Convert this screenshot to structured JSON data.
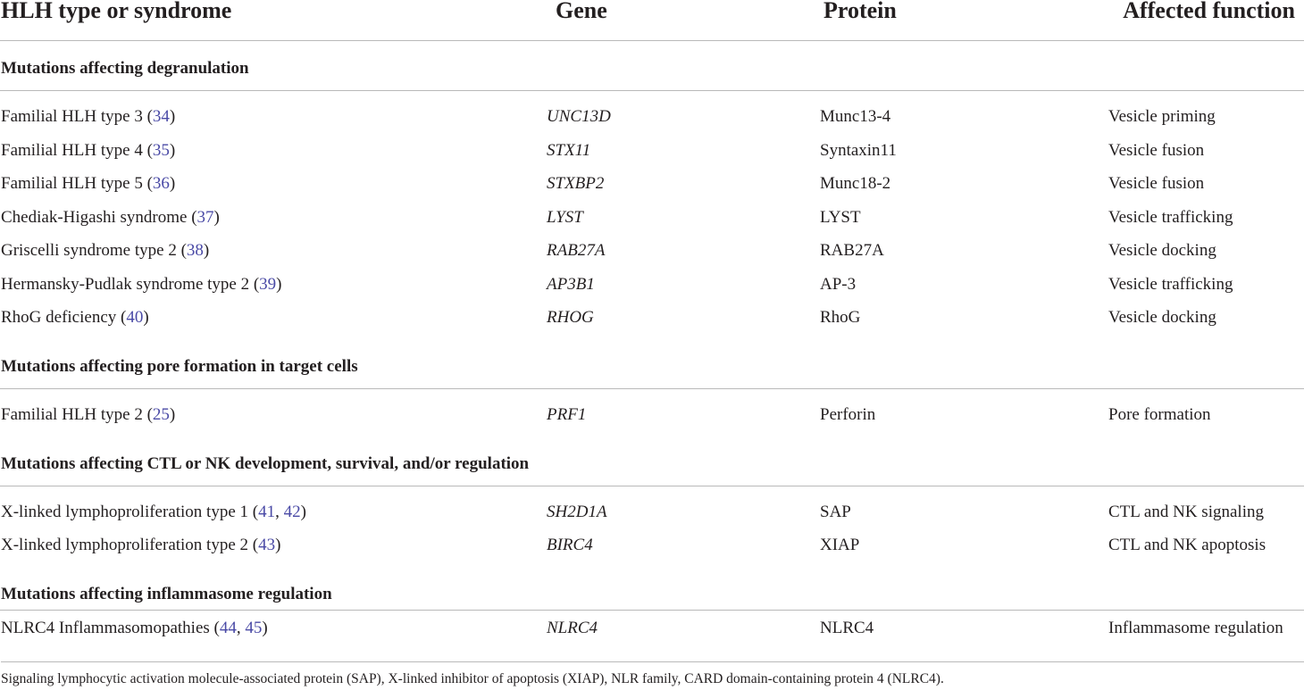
{
  "header": {
    "col1": "HLH type or syndrome",
    "col2": "Gene",
    "col3": "Protein",
    "col4": "Affected function"
  },
  "sections": [
    {
      "title": "Mutations affecting degranulation",
      "rows": [
        {
          "syndrome": "Familial HLH type 3",
          "refs": [
            "34"
          ],
          "gene": "UNC13D",
          "protein": "Munc13-4",
          "function": "Vesicle priming"
        },
        {
          "syndrome": "Familial HLH type 4",
          "refs": [
            "35"
          ],
          "gene": "STX11",
          "protein": "Syntaxin11",
          "function": "Vesicle fusion"
        },
        {
          "syndrome": "Familial HLH type 5",
          "refs": [
            "36"
          ],
          "gene": "STXBP2",
          "protein": "Munc18-2",
          "function": "Vesicle fusion"
        },
        {
          "syndrome": "Chediak-Higashi syndrome",
          "refs": [
            "37"
          ],
          "gene": "LYST",
          "protein": "LYST",
          "function": "Vesicle trafficking"
        },
        {
          "syndrome": "Griscelli syndrome type 2",
          "refs": [
            "38"
          ],
          "gene": "RAB27A",
          "protein": "RAB27A",
          "function": "Vesicle docking"
        },
        {
          "syndrome": "Hermansky-Pudlak syndrome type 2",
          "refs": [
            "39"
          ],
          "gene": "AP3B1",
          "protein": "AP-3",
          "function": "Vesicle trafficking"
        },
        {
          "syndrome": "RhoG deficiency",
          "refs": [
            "40"
          ],
          "gene": "RHOG",
          "protein": "RhoG",
          "function": "Vesicle docking"
        }
      ]
    },
    {
      "title": "Mutations affecting pore formation in target cells",
      "rows": [
        {
          "syndrome": "Familial HLH type 2",
          "refs": [
            "25"
          ],
          "gene": "PRF1",
          "protein": "Perforin",
          "function": "Pore formation"
        }
      ]
    },
    {
      "title": "Mutations affecting CTL or NK development, survival, and/or regulation",
      "rows": [
        {
          "syndrome": "X-linked lymphoproliferation type 1",
          "refs": [
            "41",
            "42"
          ],
          "gene": "SH2D1A",
          "protein": "SAP",
          "function": "CTL and NK signaling"
        },
        {
          "syndrome": "X-linked lymphoproliferation type 2",
          "refs": [
            "43"
          ],
          "gene": "BIRC4",
          "protein": "XIAP",
          "function": "CTL and NK apoptosis"
        }
      ]
    },
    {
      "title": "Mutations affecting inflammasome regulation",
      "rows": [
        {
          "syndrome": "NLRC4 Inflammasomopathies",
          "refs": [
            "44",
            "45"
          ],
          "gene": "NLRC4",
          "protein": "NLRC4",
          "function": "Inflammasome regulation"
        }
      ]
    }
  ],
  "footnote": "Signaling lymphocytic activation molecule-associated protein (SAP), X-linked inhibitor of apoptosis (XIAP), NLR family, CARD domain-containing protein 4 (NLRC4)."
}
